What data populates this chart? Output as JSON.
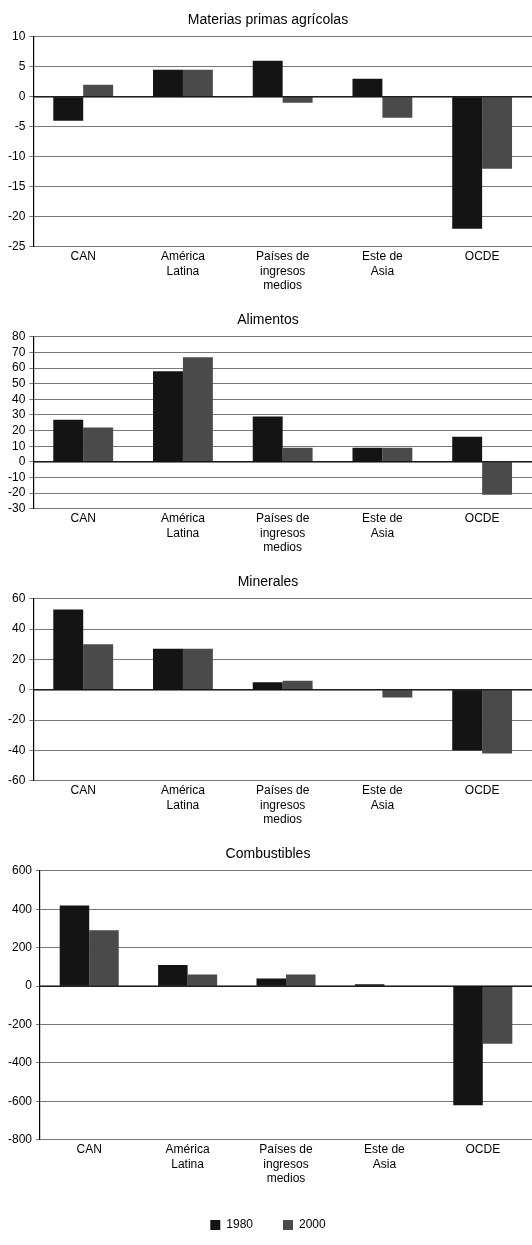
{
  "chart_data": [
    {
      "type": "bar",
      "title": "Materias primas agrícolas",
      "categories": [
        "CAN",
        "América Latina",
        "Países de ingresos medios",
        "Este de Asia",
        "OCDE"
      ],
      "series": [
        {
          "color": "#141414",
          "values": [
            -4,
            4.5,
            6,
            3,
            -22
          ]
        },
        {
          "color": "#4a4a4a",
          "values": [
            2,
            4.5,
            -1,
            -3.5,
            -12
          ]
        }
      ],
      "ylim": [
        -25,
        10
      ],
      "yticks": [
        -25,
        -20,
        -15,
        -10,
        -5,
        0,
        5,
        10
      ],
      "grid": "y"
    },
    {
      "type": "bar",
      "title": "Alimentos",
      "categories": [
        "CAN",
        "América Latina",
        "Países de ingresos medios",
        "Este de Asia",
        "OCDE"
      ],
      "series": [
        {
          "color": "#141414",
          "values": [
            27,
            58,
            29,
            9,
            16
          ]
        },
        {
          "color": "#4a4a4a",
          "values": [
            22,
            67,
            9,
            9,
            -21
          ]
        }
      ],
      "ylim": [
        -30,
        80
      ],
      "yticks": [
        -30,
        -20,
        -10,
        0,
        10,
        20,
        30,
        40,
        50,
        60,
        70,
        80
      ],
      "grid": "y"
    },
    {
      "type": "bar",
      "title": "Minerales",
      "categories": [
        "CAN",
        "América Latina",
        "Países de ingresos medios",
        "Este de Asia",
        "OCDE"
      ],
      "series": [
        {
          "color": "#141414",
          "values": [
            53,
            27,
            5,
            0,
            -40
          ]
        },
        {
          "color": "#4a4a4a",
          "values": [
            30,
            27,
            6,
            -5,
            -42
          ]
        }
      ],
      "ylim": [
        -60,
        60
      ],
      "yticks": [
        -60,
        -40,
        -20,
        0,
        20,
        40,
        60
      ],
      "grid": "y"
    },
    {
      "type": "bar",
      "title": "Combustibles",
      "categories": [
        "CAN",
        "América Latina",
        "Países de ingresos medios",
        "Este de Asia",
        "OCDE"
      ],
      "series": [
        {
          "name": "1980",
          "color": "#141414",
          "values": [
            420,
            110,
            40,
            10,
            -620
          ]
        },
        {
          "name": "2000",
          "color": "#4a4a4a",
          "values": [
            290,
            60,
            60,
            0,
            -300
          ]
        }
      ],
      "ylim": [
        -800,
        600
      ],
      "yticks": [
        -800,
        -600,
        -400,
        -200,
        0,
        200,
        400,
        600
      ],
      "grid": "y",
      "legend": "bottom"
    }
  ]
}
